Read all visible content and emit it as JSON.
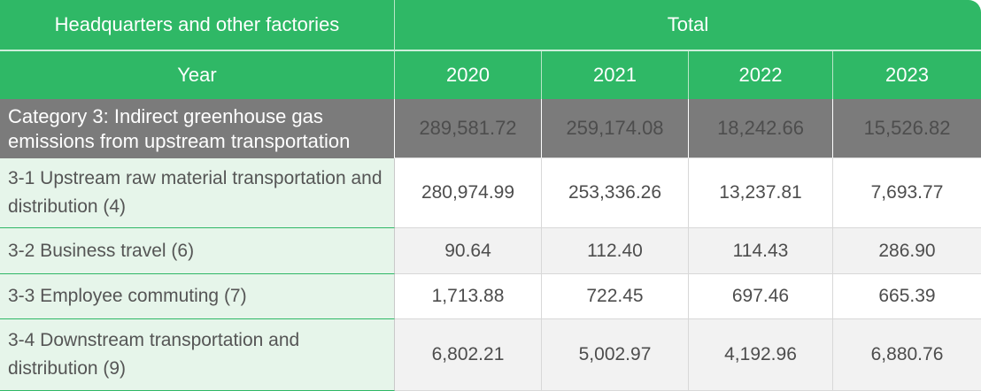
{
  "header": {
    "left_label": "Headquarters and other factories",
    "total_label": "Total"
  },
  "year_row": {
    "label": "Year",
    "years": [
      "2020",
      "2021",
      "2022",
      "2023"
    ]
  },
  "category_row": {
    "label": "Category 3: Indirect greenhouse gas emissions from upstream transportation",
    "values": [
      "289,581.72",
      "259,174.08",
      "18,242.66",
      "15,526.82"
    ]
  },
  "rows": [
    {
      "label": "3-1 Upstream raw material transportation and distribution (4)",
      "values": [
        "280,974.99",
        "253,336.26",
        "13,237.81",
        "7,693.77"
      ]
    },
    {
      "label": "3-2 Business travel (6)",
      "values": [
        "90.64",
        "112.40",
        "114.43",
        "286.90"
      ]
    },
    {
      "label": "3-3 Employee commuting (7)",
      "values": [
        "1,713.88",
        "722.45",
        "697.46",
        "665.39"
      ]
    },
    {
      "label": "3-4 Downstream transportation and distribution (9)",
      "values": [
        "6,802.21",
        "5,002.97",
        "4,192.96",
        "6,880.76"
      ]
    }
  ],
  "colors": {
    "header_green": "#2fb866",
    "category_gray": "#7b7b7b",
    "label_bg": "#e6f5ea",
    "alt_row_bg": "#f2f2f2"
  }
}
